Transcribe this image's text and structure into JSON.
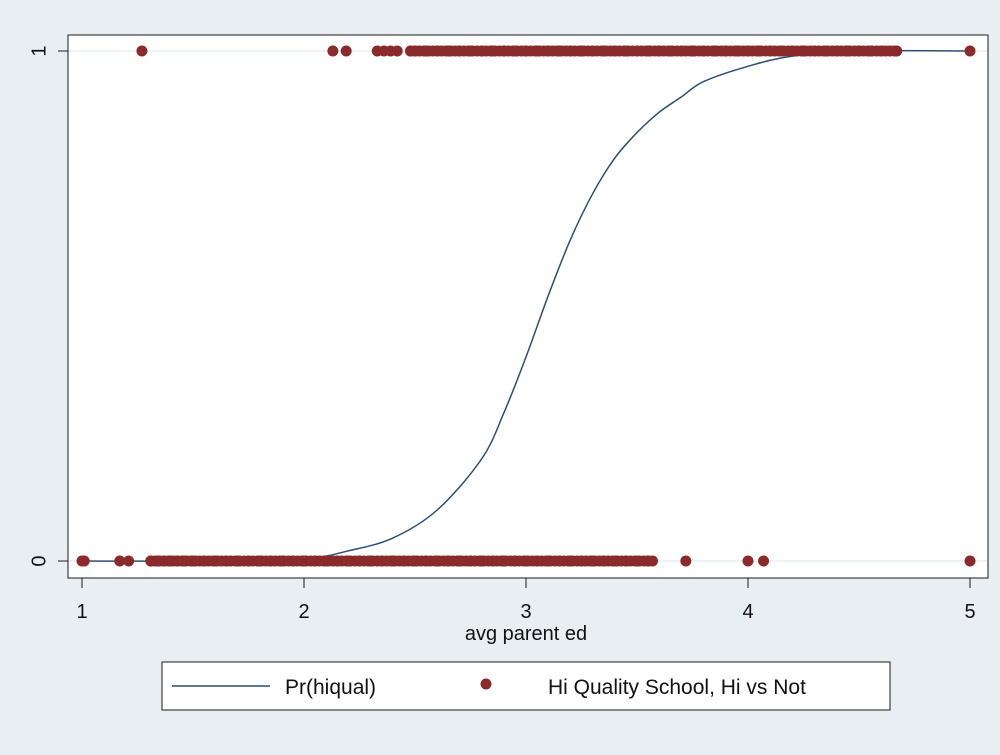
{
  "chart_data": {
    "type": "scatter",
    "title": "",
    "xlabel": "avg parent ed",
    "ylabel": "",
    "xlim": [
      1,
      5
    ],
    "ylim": [
      0,
      1
    ],
    "x_ticks": [
      "1",
      "2",
      "3",
      "4",
      "5"
    ],
    "y_ticks": [
      "0",
      "1"
    ],
    "grid": true,
    "legend_position": "bottom",
    "colors": {
      "line": "#2b4f73",
      "points": "#8b2a2a",
      "background": "#e9eef2",
      "plot_bg": "#ffffff"
    },
    "series": [
      {
        "name": "Pr(hiqual)",
        "kind": "line",
        "x": [
          1,
          1.5,
          2,
          2.2,
          2.4,
          2.6,
          2.8,
          2.9,
          3.0,
          3.1,
          3.2,
          3.3,
          3.4,
          3.5,
          3.6,
          3.7,
          3.8,
          4.0,
          4.2,
          4.5,
          5
        ],
        "y": [
          0.0,
          0.0,
          0.005,
          0.02,
          0.045,
          0.1,
          0.2,
          0.29,
          0.4,
          0.52,
          0.63,
          0.72,
          0.79,
          0.84,
          0.88,
          0.91,
          0.94,
          0.97,
          0.99,
          1.0,
          1.0
        ]
      },
      {
        "name": "Hi Quality School, Hi vs Not",
        "kind": "scatter",
        "x": [
          1.0,
          1.01,
          1.17,
          1.21,
          1.31,
          1.34,
          1.37,
          1.4,
          1.43,
          1.46,
          1.5,
          1.55,
          1.6,
          1.65,
          1.7,
          1.75,
          1.8,
          1.85,
          1.9,
          1.95,
          2.0,
          2.05,
          2.1,
          2.15,
          2.2,
          2.25,
          2.3,
          2.35,
          2.4,
          2.45,
          2.5,
          2.55,
          2.6,
          2.65,
          2.7,
          2.75,
          2.8,
          2.85,
          2.9,
          2.95,
          3.0,
          3.05,
          3.1,
          3.15,
          3.2,
          3.25,
          3.3,
          3.35,
          3.4,
          3.45,
          3.5,
          3.55,
          3.72,
          4.0,
          4.07,
          5.0,
          1.27,
          2.13,
          2.19,
          2.33,
          2.36,
          2.39,
          2.42,
          2.48,
          2.5,
          2.55,
          2.6,
          2.65,
          2.7,
          2.75,
          2.8,
          2.85,
          2.9,
          2.95,
          3.0,
          3.05,
          3.1,
          3.15,
          3.2,
          3.25,
          3.3,
          3.35,
          3.4,
          3.45,
          3.5,
          3.55,
          3.6,
          3.65,
          3.7,
          3.75,
          3.8,
          3.85,
          3.9,
          3.95,
          4.0,
          4.05,
          4.1,
          4.15,
          4.2,
          4.25,
          4.3,
          4.35,
          4.4,
          4.45,
          4.5,
          4.55,
          4.6,
          4.67,
          5.0
        ],
        "y": [
          0,
          0,
          0,
          0,
          0,
          0,
          0,
          0,
          0,
          0,
          0,
          0,
          0,
          0,
          0,
          0,
          0,
          0,
          0,
          0,
          0,
          0,
          0,
          0,
          0,
          0,
          0,
          0,
          0,
          0,
          0,
          0,
          0,
          0,
          0,
          0,
          0,
          0,
          0,
          0,
          0,
          0,
          0,
          0,
          0,
          0,
          0,
          0,
          0,
          0,
          0,
          0,
          0,
          0,
          0,
          0,
          1,
          1,
          1,
          1,
          1,
          1,
          1,
          1,
          1,
          1,
          1,
          1,
          1,
          1,
          1,
          1,
          1,
          1,
          1,
          1,
          1,
          1,
          1,
          1,
          1,
          1,
          1,
          1,
          1,
          1,
          1,
          1,
          1,
          1,
          1,
          1,
          1,
          1,
          1,
          1,
          1,
          1,
          1,
          1,
          1,
          1,
          1,
          1,
          1,
          1,
          1,
          1,
          1
        ]
      }
    ]
  }
}
